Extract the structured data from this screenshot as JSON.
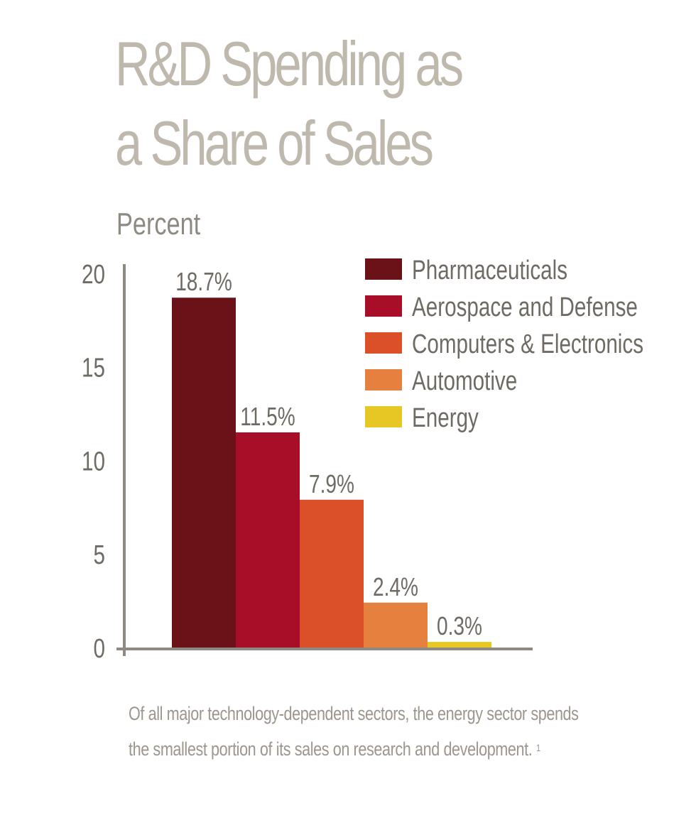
{
  "title": {
    "line1": "R&D Spending as",
    "line2": "a Share of Sales"
  },
  "chart_data": {
    "type": "bar",
    "title": "R&D Spending as a Share of Sales",
    "ylabel": "Percent",
    "xlabel": "",
    "ylim": [
      0,
      20
    ],
    "yticks": [
      0,
      5,
      10,
      15,
      20
    ],
    "grid": false,
    "legend_position": "top-right",
    "categories": [
      "Pharmaceuticals",
      "Aerospace and Defense",
      "Computers & Electronics",
      "Automotive",
      "Energy"
    ],
    "values": [
      18.7,
      11.5,
      7.9,
      2.4,
      0.3
    ],
    "data_labels": [
      "18.7%",
      "11.5%",
      "7.9%",
      "2.4%",
      "0.3%"
    ],
    "colors": [
      "#6b1218",
      "#a80e28",
      "#dc5029",
      "#e5803e",
      "#e6c724"
    ]
  },
  "colors": {
    "title": "#bfb8ad",
    "axis": "#8e8a82",
    "text": "#6f6b64",
    "caption": "#9c968d"
  },
  "caption": {
    "line1": "Of all major technology-dependent sectors, the energy sector spends",
    "line2": "the smallest portion of its sales on research and development.",
    "footnote": "1"
  }
}
